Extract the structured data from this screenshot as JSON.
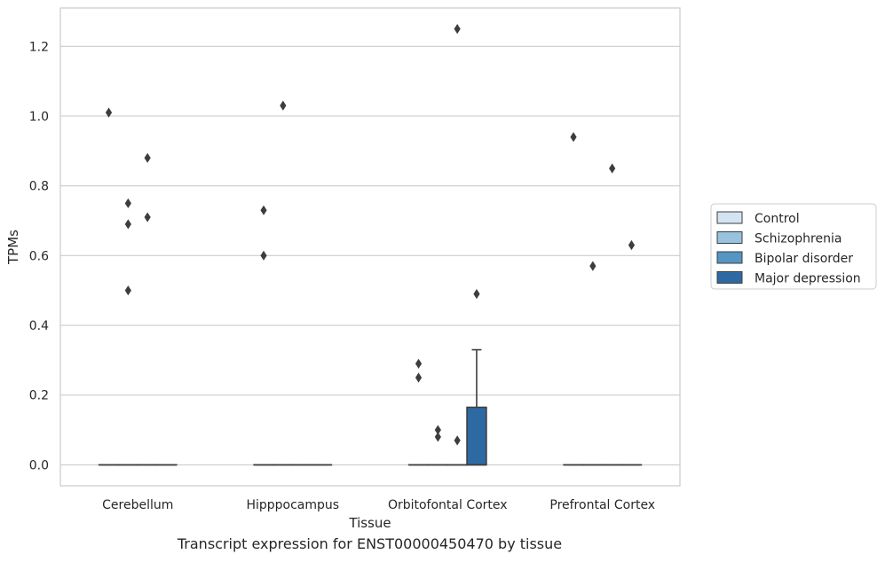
{
  "caption": "Transcript expression for ENST00000450470 by tissue",
  "chart_data": {
    "type": "box",
    "xlabel": "Tissue",
    "ylabel": "TPMs",
    "ylim": [
      -0.06,
      1.31
    ],
    "yticks": [
      0.0,
      0.2,
      0.4,
      0.6,
      0.8,
      1.0,
      1.2
    ],
    "ytick_labels": [
      "0.0",
      "0.2",
      "0.4",
      "0.6",
      "0.8",
      "1.0",
      "1.2"
    ],
    "grid": "horizontal",
    "legend_position": "right",
    "categories": [
      "Cerebellum",
      "Hipppocampus",
      "Orbitofontal Cortex",
      "Prefrontal Cortex"
    ],
    "series": [
      {
        "name": "Control",
        "color": "#d3e3f1"
      },
      {
        "name": "Schizophrenia",
        "color": "#98c3de"
      },
      {
        "name": "Bipolar disorder",
        "color": "#5495c3"
      },
      {
        "name": "Major depression",
        "color": "#2d6aa4"
      }
    ],
    "boxes": [
      {
        "category": "Cerebellum",
        "series": "Control",
        "q1": 0,
        "median": 0,
        "q3": 0,
        "whislo": 0,
        "whishi": 0,
        "fliers": [
          1.01
        ]
      },
      {
        "category": "Cerebellum",
        "series": "Schizophrenia",
        "q1": 0,
        "median": 0,
        "q3": 0,
        "whislo": 0,
        "whishi": 0,
        "fliers": [
          0.75,
          0.69,
          0.5
        ]
      },
      {
        "category": "Cerebellum",
        "series": "Bipolar disorder",
        "q1": 0,
        "median": 0,
        "q3": 0,
        "whislo": 0,
        "whishi": 0,
        "fliers": [
          0.88,
          0.71
        ]
      },
      {
        "category": "Cerebellum",
        "series": "Major depression",
        "q1": 0,
        "median": 0,
        "q3": 0,
        "whislo": 0,
        "whishi": 0,
        "fliers": []
      },
      {
        "category": "Hipppocampus",
        "series": "Control",
        "q1": 0,
        "median": 0,
        "q3": 0,
        "whislo": 0,
        "whishi": 0,
        "fliers": [
          0.73,
          0.6
        ]
      },
      {
        "category": "Hipppocampus",
        "series": "Schizophrenia",
        "q1": 0,
        "median": 0,
        "q3": 0,
        "whislo": 0,
        "whishi": 0,
        "fliers": [
          1.03
        ]
      },
      {
        "category": "Hipppocampus",
        "series": "Bipolar disorder",
        "q1": 0,
        "median": 0,
        "q3": 0,
        "whislo": 0,
        "whishi": 0,
        "fliers": []
      },
      {
        "category": "Hipppocampus",
        "series": "Major depression",
        "q1": 0,
        "median": 0,
        "q3": 0,
        "whislo": 0,
        "whishi": 0,
        "fliers": []
      },
      {
        "category": "Orbitofontal Cortex",
        "series": "Control",
        "q1": 0,
        "median": 0,
        "q3": 0,
        "whislo": 0,
        "whishi": 0,
        "fliers": [
          0.29,
          0.25
        ]
      },
      {
        "category": "Orbitofontal Cortex",
        "series": "Schizophrenia",
        "q1": 0,
        "median": 0,
        "q3": 0,
        "whislo": 0,
        "whishi": 0,
        "fliers": [
          0.1,
          0.08
        ]
      },
      {
        "category": "Orbitofontal Cortex",
        "series": "Bipolar disorder",
        "q1": 0,
        "median": 0,
        "q3": 0,
        "whislo": 0,
        "whishi": 0,
        "fliers": [
          1.25,
          0.07
        ]
      },
      {
        "category": "Orbitofontal Cortex",
        "series": "Major depression",
        "q1": 0,
        "median": 0,
        "q3": 0.165,
        "whislo": 0,
        "whishi": 0.33,
        "fliers": [
          0.49
        ]
      },
      {
        "category": "Prefrontal Cortex",
        "series": "Control",
        "q1": 0,
        "median": 0,
        "q3": 0,
        "whislo": 0,
        "whishi": 0,
        "fliers": [
          0.94
        ]
      },
      {
        "category": "Prefrontal Cortex",
        "series": "Schizophrenia",
        "q1": 0,
        "median": 0,
        "q3": 0,
        "whislo": 0,
        "whishi": 0,
        "fliers": [
          0.57
        ]
      },
      {
        "category": "Prefrontal Cortex",
        "series": "Bipolar disorder",
        "q1": 0,
        "median": 0,
        "q3": 0,
        "whislo": 0,
        "whishi": 0,
        "fliers": [
          0.85
        ]
      },
      {
        "category": "Prefrontal Cortex",
        "series": "Major depression",
        "q1": 0,
        "median": 0,
        "q3": 0,
        "whislo": 0,
        "whishi": 0,
        "fliers": [
          0.63
        ]
      }
    ]
  }
}
